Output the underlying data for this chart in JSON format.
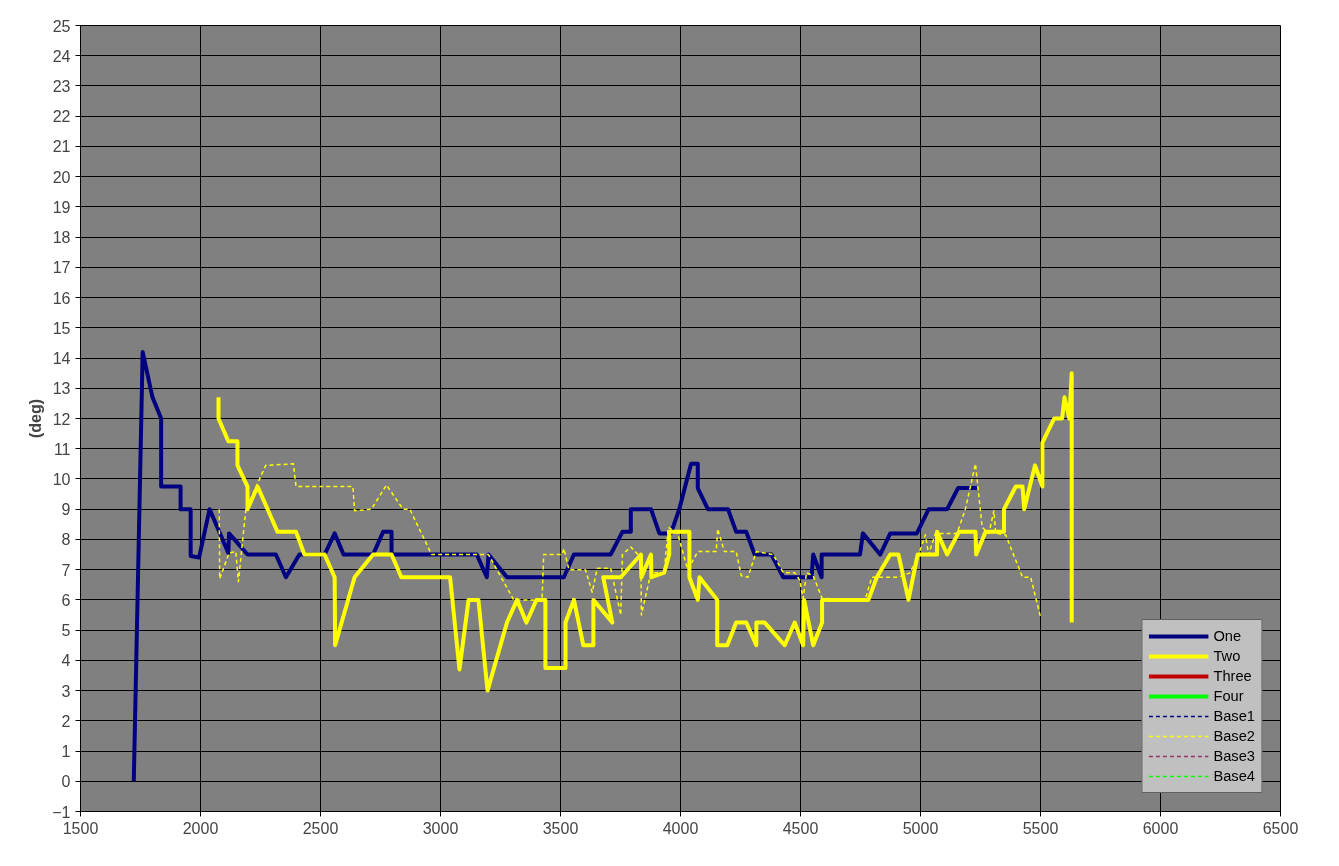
{
  "chart_data": {
    "type": "line",
    "ylabel": "(deg)",
    "xlim": [
      1500,
      6500
    ],
    "xticks": [
      1500,
      2000,
      2500,
      3000,
      3500,
      4000,
      4500,
      5000,
      5500,
      6000,
      6500
    ],
    "ylim": [
      -1,
      25
    ],
    "yticks": [
      -1,
      0,
      1,
      2,
      3,
      4,
      5,
      6,
      7,
      8,
      9,
      10,
      11,
      12,
      13,
      14,
      15,
      16,
      17,
      18,
      19,
      20,
      21,
      22,
      23,
      24,
      25
    ],
    "grid": true,
    "legend": "bottom right",
    "marker": "none",
    "series": [
      {
        "name": "One",
        "color": "#000080",
        "line_style": "solid",
        "x": [
          1722,
          1759,
          1800,
          1836,
          1836,
          1917,
          1917,
          1959,
          1959,
          1994,
          2038,
          2116,
          2119,
          2196,
          2314,
          2356,
          2412,
          2517,
          2559,
          2596,
          2719,
          2761,
          2796,
          2796,
          3151,
          3193,
          3200,
          3277,
          3514,
          3556,
          3709,
          3758,
          3793,
          3793,
          3877,
          3912,
          3960,
          3995,
          4044,
          4072,
          4072,
          4114,
          4198,
          4232,
          4274,
          4309,
          4379,
          4428,
          4546,
          4553,
          4588,
          4588,
          4748,
          4760,
          4832,
          4874,
          4985,
          5034,
          5111,
          5157,
          5236
        ],
        "values": [
          0,
          14.2,
          12.7,
          12.0,
          9.75,
          9.75,
          9.0,
          9.0,
          7.45,
          7.4,
          9.0,
          7.55,
          8.2,
          7.5,
          7.5,
          6.75,
          7.5,
          7.5,
          8.2,
          7.5,
          7.5,
          8.25,
          8.25,
          7.5,
          7.5,
          6.75,
          7.5,
          6.75,
          6.75,
          7.5,
          7.5,
          8.25,
          8.25,
          9.0,
          9.0,
          8.2,
          8.2,
          9.0,
          10.5,
          10.5,
          9.7,
          9.0,
          9.0,
          8.25,
          8.25,
          7.5,
          7.5,
          6.75,
          6.75,
          7.5,
          6.75,
          7.5,
          7.5,
          8.2,
          7.5,
          8.2,
          8.2,
          9.0,
          9.0,
          9.7,
          9.7
        ]
      },
      {
        "name": "Two",
        "color": "#ffff00",
        "line_style": "solid",
        "x": [
          2075,
          2075,
          2116,
          2154,
          2154,
          2196,
          2196,
          2238,
          2321,
          2398,
          2433,
          2517,
          2559,
          2561,
          2642,
          2719,
          2796,
          2837,
          3033,
          3040,
          3079,
          3117,
          3158,
          3196,
          3277,
          3319,
          3358,
          3400,
          3437,
          3437,
          3521,
          3521,
          3556,
          3595,
          3637,
          3637,
          3716,
          3678,
          3751,
          3835,
          3837,
          3877,
          3879,
          3932,
          3953,
          3953,
          4037,
          4037,
          4072,
          4079,
          4153,
          4153,
          4195,
          4232,
          4274,
          4316,
          4316,
          4351,
          4434,
          4476,
          4511,
          4515,
          4553,
          4590,
          4590,
          4748,
          4783,
          4818,
          4874,
          4908,
          4950,
          4988,
          5069,
          5069,
          5111,
          5160,
          5229,
          5232,
          5271,
          5348,
          5348,
          5397,
          5425,
          5432,
          5477,
          5508,
          5508,
          5557,
          5590,
          5600,
          5620,
          5630,
          5630
        ],
        "values": [
          12.7,
          12.0,
          11.25,
          11.25,
          10.45,
          9.75,
          9.0,
          9.75,
          8.25,
          8.25,
          7.5,
          7.5,
          6.75,
          4.5,
          6.75,
          7.5,
          7.5,
          6.75,
          6.75,
          6.75,
          3.7,
          6.0,
          6.0,
          3.0,
          5.25,
          6.0,
          5.25,
          6.0,
          6.0,
          3.75,
          3.75,
          5.25,
          6.0,
          4.5,
          4.5,
          6.0,
          5.25,
          6.75,
          6.75,
          7.5,
          6.75,
          7.5,
          6.75,
          6.9,
          7.5,
          8.25,
          8.25,
          6.75,
          6.0,
          6.75,
          6.0,
          4.5,
          4.5,
          5.25,
          5.25,
          4.5,
          5.25,
          5.25,
          4.5,
          5.25,
          4.5,
          6.0,
          4.5,
          5.25,
          6.0,
          6.0,
          6.0,
          6.75,
          7.5,
          7.5,
          6.0,
          7.5,
          7.5,
          8.25,
          7.5,
          8.25,
          8.25,
          7.5,
          8.25,
          8.25,
          9.0,
          9.75,
          9.75,
          9.0,
          10.45,
          9.75,
          11.2,
          12.0,
          12.0,
          12.7,
          12.0,
          13.5,
          5.25
        ]
      },
      {
        "name": "Three",
        "color": "#c00000",
        "line_style": "solid"
      },
      {
        "name": "Four",
        "color": "#00ff00",
        "line_style": "solid"
      },
      {
        "name": "Base1",
        "color": "#000080",
        "line_style": "dashed"
      },
      {
        "name": "Base2",
        "color": "#ffff00",
        "line_style": "dashed",
        "x": [
          2078,
          2080,
          2119,
          2147,
          2158,
          2189,
          2272,
          2387,
          2398,
          2635,
          2642,
          2712,
          2775,
          2844,
          2872,
          2963,
          3200,
          3305,
          3423,
          3430,
          3507,
          3514,
          3535,
          3604,
          3632,
          3653,
          3709,
          3751,
          3758,
          3793,
          3835,
          3837,
          3877,
          3932,
          3949,
          3988,
          4030,
          4072,
          4149,
          4155,
          4183,
          4232,
          4253,
          4281,
          4316,
          4386,
          4428,
          4476,
          4497,
          4511,
          4525,
          4553,
          4590,
          4769,
          4797,
          4908,
          4957,
          4992,
          5020,
          5034,
          5062,
          5152,
          5187,
          5229,
          5257,
          5285,
          5306,
          5313,
          5355,
          5425,
          5459,
          5501
        ],
        "values": [
          9.0,
          6.7,
          7.55,
          7.6,
          6.6,
          9.0,
          10.45,
          10.5,
          9.75,
          9.75,
          8.95,
          9.0,
          9.8,
          9.0,
          9.0,
          7.5,
          7.5,
          6.0,
          6.0,
          7.5,
          7.5,
          7.7,
          7.0,
          7.0,
          6.25,
          7.05,
          7.05,
          5.5,
          7.5,
          7.75,
          7.4,
          5.5,
          6.9,
          6.9,
          8.4,
          8.2,
          7.0,
          7.6,
          7.6,
          8.35,
          7.6,
          7.6,
          6.8,
          6.75,
          7.6,
          7.5,
          6.9,
          6.9,
          6.65,
          6.05,
          6.9,
          6.8,
          6.05,
          6.0,
          6.75,
          6.75,
          6.9,
          7.5,
          8.15,
          7.5,
          8.2,
          8.2,
          9.0,
          10.5,
          8.4,
          8.2,
          8.95,
          8.2,
          8.15,
          6.75,
          6.75,
          5.4
        ]
      },
      {
        "name": "Base3",
        "color": "#993366",
        "line_style": "dashed"
      },
      {
        "name": "Base4",
        "color": "#00ff00",
        "line_style": "dashed"
      }
    ]
  }
}
